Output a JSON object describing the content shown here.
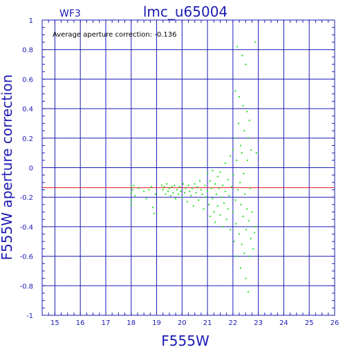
{
  "colors": {
    "axis": "#1a1ab4",
    "grid": "#1a1ab4",
    "points": "#22e022",
    "mean_line": "#e02020",
    "background": "#ffffff"
  },
  "chart_data": {
    "type": "scatter",
    "title": "lmc_u65004",
    "chip_label": "WF3",
    "annotation": "Average aperture correction: -0.136",
    "xlabel": "F555W",
    "ylabel": "F555W aperture correction",
    "xlim": [
      14.5,
      26
    ],
    "ylim": [
      -1,
      1
    ],
    "xticks": [
      15,
      16,
      17,
      18,
      19,
      20,
      21,
      22,
      23,
      24,
      25,
      26
    ],
    "yticks": [
      -1,
      -0.8,
      -0.6,
      -0.4,
      -0.2,
      0,
      0.2,
      0.4,
      0.6,
      0.8,
      1
    ],
    "ytick_labels": [
      "-1",
      "-0.8",
      "-0.6",
      "-0.4",
      "-0.2",
      "0",
      "0.2",
      "0.4",
      "0.6",
      "0.8",
      "1"
    ],
    "grid": true,
    "mean_line_y": -0.136,
    "series": [
      {
        "points": [
          [
            18.0,
            -0.13
          ],
          [
            18.0,
            -0.17
          ],
          [
            18.0,
            -0.22
          ],
          [
            18.0,
            -0.25
          ],
          [
            18.05,
            -0.15
          ],
          [
            18.1,
            -0.12
          ],
          [
            18.15,
            -0.19
          ],
          [
            18.3,
            -0.14
          ],
          [
            18.5,
            -0.16
          ],
          [
            18.6,
            -0.21
          ],
          [
            18.7,
            -0.15
          ],
          [
            18.8,
            -0.13
          ],
          [
            18.85,
            -0.27
          ],
          [
            18.9,
            -0.31
          ],
          [
            18.95,
            -0.18
          ],
          [
            19.2,
            -0.12
          ],
          [
            19.25,
            -0.15
          ],
          [
            19.3,
            -0.13
          ],
          [
            19.35,
            -0.18
          ],
          [
            19.4,
            -0.11
          ],
          [
            19.45,
            -0.16
          ],
          [
            19.5,
            -0.14
          ],
          [
            19.55,
            -0.19
          ],
          [
            19.6,
            -0.13
          ],
          [
            19.65,
            -0.17
          ],
          [
            19.7,
            -0.12
          ],
          [
            19.75,
            -0.21
          ],
          [
            19.8,
            -0.15
          ],
          [
            19.85,
            -0.18
          ],
          [
            19.9,
            -0.13
          ],
          [
            19.95,
            -0.16
          ],
          [
            20.0,
            -0.2
          ],
          [
            20.05,
            -0.11
          ],
          [
            20.1,
            -0.17
          ],
          [
            20.15,
            -0.14
          ],
          [
            20.2,
            -0.23
          ],
          [
            20.25,
            -0.12
          ],
          [
            20.3,
            -0.16
          ],
          [
            20.35,
            -0.19
          ],
          [
            20.4,
            -0.14
          ],
          [
            20.45,
            -0.26
          ],
          [
            20.5,
            -0.11
          ],
          [
            20.55,
            -0.17
          ],
          [
            20.6,
            -0.13
          ],
          [
            20.65,
            -0.22
          ],
          [
            20.7,
            -0.09
          ],
          [
            20.75,
            -0.15
          ],
          [
            20.8,
            -0.18
          ],
          [
            20.85,
            -0.28
          ],
          [
            20.9,
            -0.12
          ],
          [
            20.95,
            -0.2
          ],
          [
            21.0,
            -0.04
          ],
          [
            21.0,
            -0.16
          ],
          [
            21.05,
            -0.25
          ],
          [
            21.1,
            -0.09
          ],
          [
            21.1,
            -0.33
          ],
          [
            21.15,
            -0.14
          ],
          [
            21.2,
            -0.21
          ],
          [
            21.2,
            -0.02
          ],
          [
            21.25,
            -0.3
          ],
          [
            21.3,
            -0.11
          ],
          [
            21.3,
            -0.37
          ],
          [
            21.35,
            -0.18
          ],
          [
            21.4,
            -0.06
          ],
          [
            21.4,
            -0.26
          ],
          [
            21.45,
            -0.14
          ],
          [
            21.5,
            -0.32
          ],
          [
            21.5,
            -0.03
          ],
          [
            21.55,
            -0.2
          ],
          [
            21.6,
            -0.12
          ],
          [
            21.6,
            -0.4
          ],
          [
            21.65,
            -0.24
          ],
          [
            21.7,
            0.03
          ],
          [
            21.7,
            -0.16
          ],
          [
            21.75,
            -0.35
          ],
          [
            21.8,
            -0.08
          ],
          [
            21.8,
            -0.28
          ],
          [
            21.85,
            -0.19
          ],
          [
            21.9,
            0.08
          ],
          [
            21.9,
            -0.42
          ],
          [
            21.95,
            -0.13
          ],
          [
            22.0,
            0.12
          ],
          [
            22.0,
            -0.3
          ],
          [
            22.02,
            -0.05
          ],
          [
            22.05,
            -0.5
          ],
          [
            22.07,
            0.2
          ],
          [
            22.1,
            -0.22
          ],
          [
            22.1,
            0.52
          ],
          [
            22.12,
            -0.38
          ],
          [
            22.15,
            0.05
          ],
          [
            22.15,
            -0.6
          ],
          [
            22.17,
            0.82
          ],
          [
            22.2,
            -0.15
          ],
          [
            22.22,
            0.3
          ],
          [
            22.25,
            -0.45
          ],
          [
            22.25,
            0.48
          ],
          [
            22.28,
            -0.1
          ],
          [
            22.3,
            0.15
          ],
          [
            22.3,
            -0.68
          ],
          [
            22.32,
            -0.25
          ],
          [
            22.35,
            0.1
          ],
          [
            22.35,
            -0.52
          ],
          [
            22.37,
            0.76
          ],
          [
            22.4,
            -0.33
          ],
          [
            22.4,
            0.42
          ],
          [
            22.42,
            -0.04
          ],
          [
            22.45,
            -0.58
          ],
          [
            22.45,
            0.25
          ],
          [
            22.47,
            -0.18
          ],
          [
            22.5,
            0.7
          ],
          [
            22.5,
            -0.75
          ],
          [
            22.52,
            -0.42
          ],
          [
            22.55,
            0.38
          ],
          [
            22.55,
            -0.28
          ],
          [
            22.57,
            0.05
          ],
          [
            22.6,
            -0.84
          ],
          [
            22.6,
            0.2
          ],
          [
            22.62,
            -0.36
          ],
          [
            22.65,
            0.32
          ],
          [
            22.65,
            -0.6
          ],
          [
            22.68,
            -0.14
          ],
          [
            22.7,
            -0.48
          ],
          [
            22.72,
            0.12
          ],
          [
            22.75,
            -0.3
          ],
          [
            22.8,
            -0.55
          ],
          [
            22.85,
            -0.44
          ],
          [
            22.88,
            0.85
          ],
          [
            22.9,
            -0.4
          ],
          [
            22.92,
            0.1
          ]
        ]
      }
    ]
  }
}
